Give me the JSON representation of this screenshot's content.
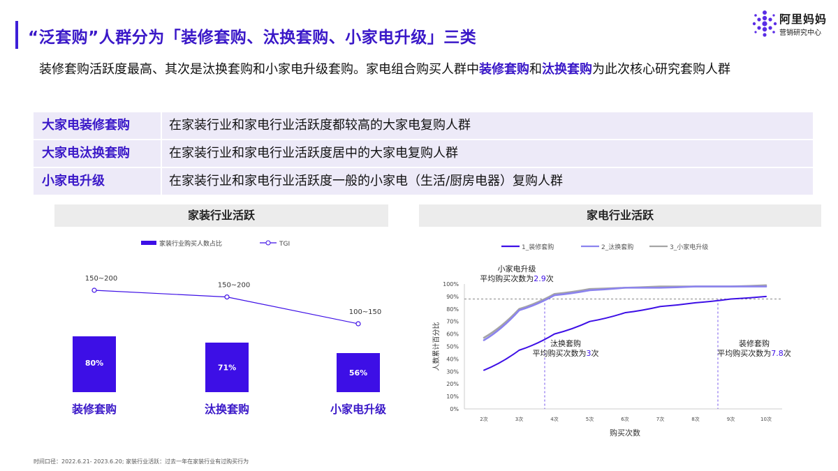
{
  "header": {
    "title": "“泛套购”人群分为「装修套购、汰换套购、小家电升级」三类",
    "logo_brand": "阿里妈妈",
    "logo_sub": "营销研究中心"
  },
  "intro": {
    "part1": "装修套购活跃度最高、其次是汰换套购和小家电升级套购。家电组合购买人群中",
    "hl1": "装修套购",
    "mid": "和",
    "hl2": "汰换套购",
    "part2": "为此次核心研究套购人群"
  },
  "definitions": [
    {
      "name": "大家电装修套购",
      "desc": "在家装行业和家电行业活跃度都较高的大家电复购人群"
    },
    {
      "name": "大家电汰换套购",
      "desc": "在家装行业和家电行业活跃度居中的大家电复购人群"
    },
    {
      "name": "小家电升级",
      "desc": "在家装行业和家电行业活跃度一般的小家电（生活/厨房电器）复购人群"
    }
  ],
  "left_panel": {
    "title": "家装行业活跃"
  },
  "right_panel": {
    "title": "家电行业活跃"
  },
  "colors": {
    "accent": "#3a18c8",
    "bar": "#3d0fe6",
    "series1": "#3d0fe6",
    "series2": "#8b83ee",
    "series3": "#a5a5a5"
  },
  "chart_data": [
    {
      "type": "bar",
      "title": "家装行业活跃",
      "categories": [
        "装修套购",
        "汰换套购",
        "小家电升级"
      ],
      "series": [
        {
          "name": "家装行业购买人数占比",
          "values": [
            80,
            71,
            56
          ],
          "labels": [
            "80%",
            "71%",
            "56%"
          ]
        },
        {
          "name": "TGI",
          "type": "line",
          "labels": [
            "150~200",
            "150~200",
            "100~150"
          ],
          "values": [
            175,
            165,
            125
          ]
        }
      ],
      "legend": "top"
    },
    {
      "type": "line",
      "title": "家电行业活跃",
      "xlabel": "购买次数",
      "ylabel": "人数累计百分比",
      "x": [
        "2次",
        "3次",
        "4次",
        "5次",
        "6次",
        "7次",
        "8次",
        "9次",
        "10次"
      ],
      "y_ticks": [
        "0%",
        "10%",
        "20%",
        "30%",
        "40%",
        "50%",
        "60%",
        "70%",
        "80%",
        "90%",
        "100%"
      ],
      "ylim": [
        0,
        100
      ],
      "series": [
        {
          "name": "1_装修套购",
          "values": [
            31,
            47,
            60,
            70,
            77,
            82,
            85,
            88,
            90
          ]
        },
        {
          "name": "2_汰换套购",
          "values": [
            55,
            79,
            91,
            95,
            97,
            97,
            98,
            98,
            98
          ]
        },
        {
          "name": "3_小家电升级",
          "values": [
            57,
            80,
            92,
            96,
            97,
            98,
            98,
            98,
            99
          ]
        }
      ],
      "reference_line": {
        "y": 88
      },
      "annotations": [
        {
          "label": "小家电升级",
          "text": "平均购买次数为",
          "value": "2.9",
          "suffix": "次"
        },
        {
          "label": "汰换套购",
          "text": "平均购买次数为",
          "value": "3",
          "suffix": "次"
        },
        {
          "label": "装修套购",
          "text": "平均购买次数为",
          "value": "7.8",
          "suffix": "次"
        }
      ],
      "legend": "top"
    }
  ],
  "footnote": "时间口径：2022.6.21- 2023.6.20; 家装行业活跃：过去一年在家装行业有过购买行为"
}
